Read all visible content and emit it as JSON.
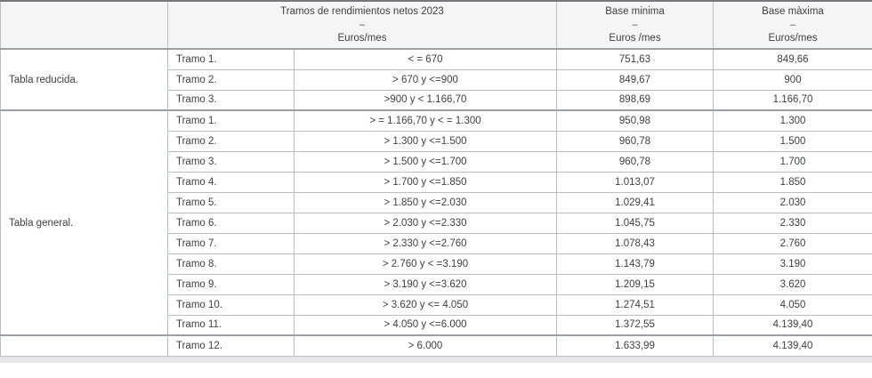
{
  "table": {
    "header": {
      "corner": "",
      "tramos": {
        "line1": "Tramos de rendimientos netos 2023",
        "dash": "–",
        "line2": "Euros/mes"
      },
      "base_min": {
        "line1": "Base minima",
        "dash": "–",
        "line2": "Euros /mes"
      },
      "base_max": {
        "line1": "Base màxima",
        "dash": "–",
        "line2": "Euros/mes"
      }
    },
    "groups": [
      {
        "label": "Tabla reducida.",
        "rows": [
          {
            "tramo": "Tramo 1.",
            "range": "< = 670",
            "base_min": "751,63",
            "base_max": "849,66"
          },
          {
            "tramo": "Tramo 2.",
            "range": "> 670 y <=900",
            "base_min": "849,67",
            "base_max": "900"
          },
          {
            "tramo": "Tramo 3.",
            "range": ">900 y < 1.166,70",
            "base_min": "898,69",
            "base_max": "1.166,70"
          }
        ]
      },
      {
        "label": "Tabla general.",
        "rows": [
          {
            "tramo": "Tramo 1.",
            "range": "> = 1.166,70 y < = 1.300",
            "base_min": "950,98",
            "base_max": "1.300"
          },
          {
            "tramo": "Tramo 2.",
            "range": "> 1.300 y <=1.500",
            "base_min": "960,78",
            "base_max": "1.500"
          },
          {
            "tramo": "Tramo 3.",
            "range": "> 1.500 y <=1.700",
            "base_min": "960,78",
            "base_max": "1.700"
          },
          {
            "tramo": "Tramo 4.",
            "range": "> 1.700 y <=1.850",
            "base_min": "1.013,07",
            "base_max": "1.850"
          },
          {
            "tramo": "Tramo 5.",
            "range": "> 1.850 y <=2.030",
            "base_min": "1.029,41",
            "base_max": "2.030"
          },
          {
            "tramo": "Tramo 6.",
            "range": "> 2.030 y <=2.330",
            "base_min": "1.045,75",
            "base_max": "2.330"
          },
          {
            "tramo": "Tramo 7.",
            "range": "> 2.330 y <=2.760",
            "base_min": "1.078,43",
            "base_max": "2.760"
          },
          {
            "tramo": "Tramo 8.",
            "range": "> 2.760 y < =3.190",
            "base_min": "1.143,79",
            "base_max": "3.190"
          },
          {
            "tramo": "Tramo 9.",
            "range": "> 3.190 y <=3.620",
            "base_min": "1.209,15",
            "base_max": "3.620"
          },
          {
            "tramo": "Tramo 10.",
            "range": "> 3.620 y <= 4.050",
            "base_min": "1.274,51",
            "base_max": "4.050"
          },
          {
            "tramo": "Tramo 11.",
            "range": "> 4.050 y <=6.000",
            "base_min": "1.372,55",
            "base_max": "4.139,40"
          }
        ]
      },
      {
        "label": "",
        "rows": [
          {
            "tramo": "Tramo 12.",
            "range": "> 6.000",
            "base_min": "1.633,99",
            "base_max": "4.139,40"
          }
        ]
      }
    ],
    "colors": {
      "header_bg": "#f4f5f7",
      "border": "#b9bfc5",
      "group_separator": "#9aa0a6",
      "top_rule": "#75797e",
      "text": "#3e4144"
    }
  }
}
